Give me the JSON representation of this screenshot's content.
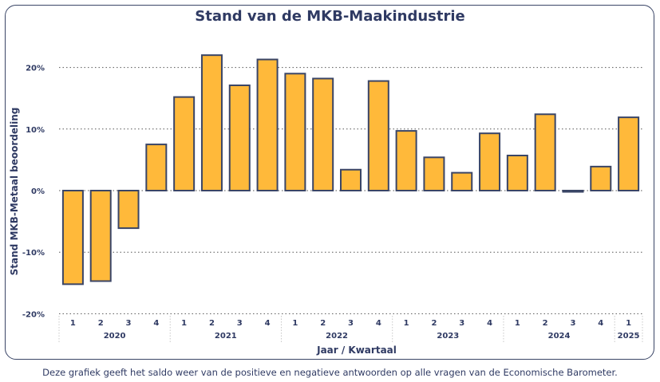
{
  "chart_data": {
    "type": "bar",
    "title": "Stand van de MKB-Maakindustrie",
    "xlabel": "Jaar / Kwartaal",
    "ylabel": "Stand MKB-Metaal beoordeling",
    "ylim": [
      -20,
      25
    ],
    "yticks": [
      "20%",
      "10%",
      "0%",
      "-10%",
      "-20%"
    ],
    "ytick_values": [
      20,
      10,
      0,
      -10,
      -20
    ],
    "grid": true,
    "categories": [
      "1",
      "2",
      "3",
      "4",
      "1",
      "2",
      "3",
      "4",
      "1",
      "2",
      "3",
      "4",
      "1",
      "2",
      "3",
      "4",
      "1",
      "2",
      "3",
      "4",
      "1"
    ],
    "years": [
      {
        "label": "2020",
        "count": 4
      },
      {
        "label": "2021",
        "count": 4
      },
      {
        "label": "2022",
        "count": 4
      },
      {
        "label": "2023",
        "count": 4
      },
      {
        "label": "2024",
        "count": 4
      },
      {
        "label": "2025",
        "count": 1
      }
    ],
    "values": [
      -15.2,
      -14.7,
      -6.1,
      7.5,
      15.2,
      22.0,
      17.1,
      21.3,
      19.0,
      18.2,
      3.4,
      17.8,
      9.7,
      5.4,
      2.9,
      9.3,
      5.7,
      12.4,
      -0.2,
      3.9,
      11.9
    ],
    "bar_color": "#ffb93a",
    "bar_stroke": "#3a4566"
  },
  "caption": "Deze grafiek geeft het saldo weer van de positieve en negatieve antwoorden op alle vragen van de Economische Barometer."
}
